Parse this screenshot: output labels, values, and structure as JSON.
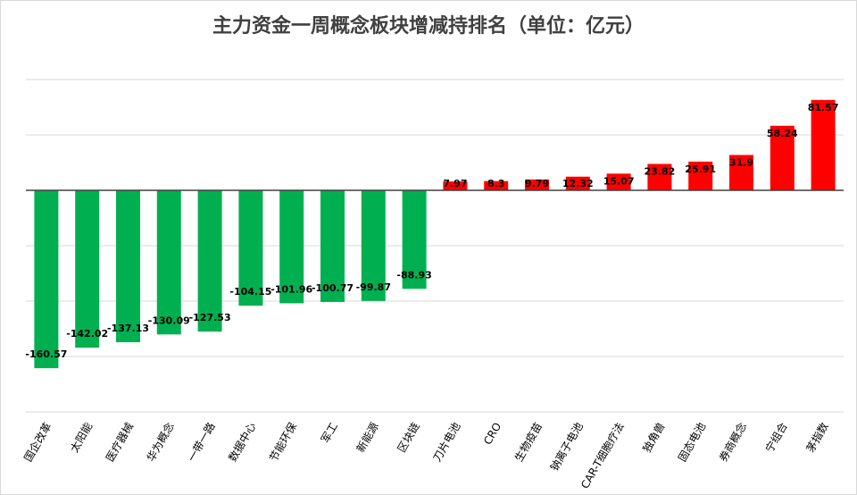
{
  "chart_data": {
    "type": "bar",
    "title": "主力资金一周概念板块增减持排名（单位：亿元）",
    "xlabel": "",
    "ylabel": "",
    "ylim": [
      -200,
      100
    ],
    "grid": true,
    "legend": "none",
    "categories": [
      "国企改革",
      "太阳能",
      "医疗器械",
      "华为概念",
      "一带一路",
      "数据中心",
      "节能环保",
      "军工",
      "新能源",
      "区块链",
      "刀片电池",
      "CRO",
      "生物疫苗",
      "钠离子电池",
      "CAR-T细胞疗法",
      "独角兽",
      "固态电池",
      "券商概念",
      "宁组合",
      "茅指数"
    ],
    "values": [
      -160.57,
      -142.02,
      -137.13,
      -130.09,
      -127.53,
      -104.15,
      -101.96,
      -100.77,
      -99.87,
      -88.93,
      7.97,
      8.3,
      9.79,
      12.32,
      15.07,
      23.82,
      25.91,
      31.9,
      58.24,
      81.57
    ],
    "data_labels": [
      "-160.57",
      "-142.02",
      "-137.13",
      "-130.09",
      "-127.53",
      "-104.15",
      "-101.96",
      "-100.77",
      "-99.87",
      "-88.93",
      "7.97",
      "8.3",
      "9.79",
      "12.32",
      "15.07",
      "23.82",
      "25.91",
      "31.9",
      "58.24",
      "81.57"
    ],
    "colors": {
      "positive": "#ff0000",
      "negative": "#00b050",
      "grid": "#d9d9d9",
      "axis": "#404040",
      "text": "#000000"
    }
  }
}
